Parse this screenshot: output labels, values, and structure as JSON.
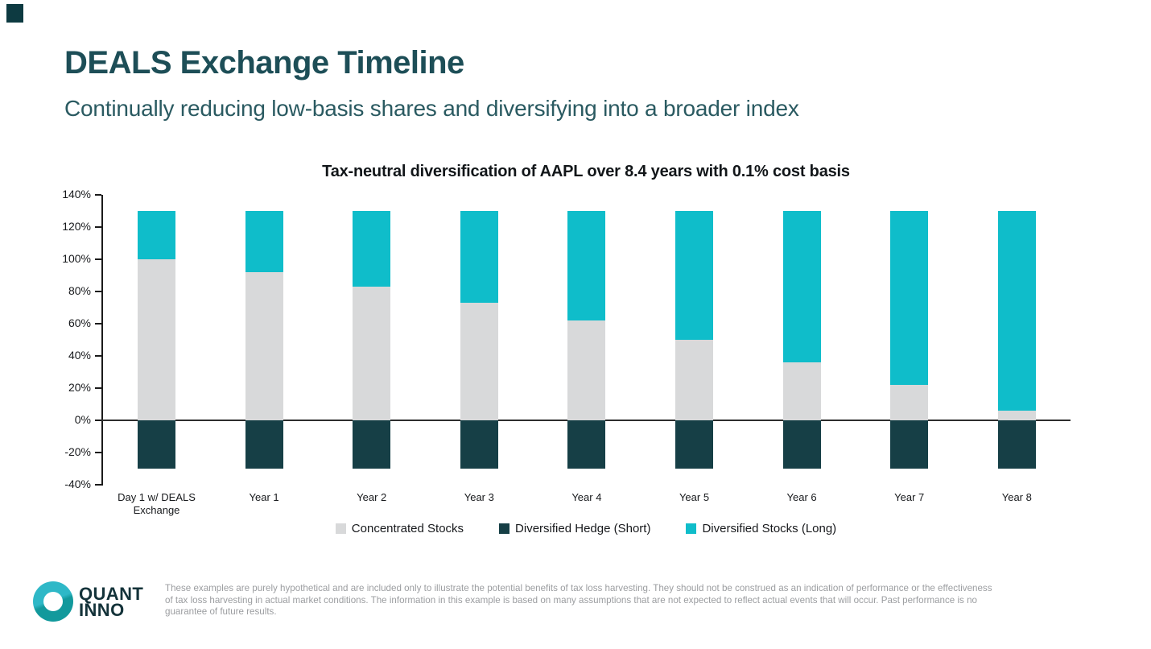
{
  "page": {
    "title": "DEALS Exchange Timeline",
    "subtitle": "Continually reducing low-basis shares and diversifying into a broader index"
  },
  "chart_data": {
    "type": "bar",
    "variant": "stacked",
    "title": "Tax-neutral diversification of AAPL over 8.4 years with 0.1% cost basis",
    "categories": [
      "Day 1 w/ DEALS\nExchange",
      "Year 1",
      "Year 2",
      "Year 3",
      "Year 4",
      "Year 5",
      "Year 6",
      "Year 7",
      "Year 8"
    ],
    "series": [
      {
        "name": "Concentrated Stocks",
        "color": "#d8d9da",
        "values": [
          100,
          92,
          83,
          73,
          62,
          50,
          36,
          22,
          6
        ]
      },
      {
        "name": "Diversified Hedge (Short)",
        "color": "#163f46",
        "values": [
          -30,
          -30,
          -30,
          -30,
          -30,
          -30,
          -30,
          -30,
          -30
        ]
      },
      {
        "name": "Diversified Stocks (Long)",
        "color": "#0fbdca",
        "values": [
          30,
          38,
          47,
          57,
          68,
          80,
          94,
          108,
          124
        ]
      }
    ],
    "stack_totals_positive": [
      130,
      130,
      130,
      130,
      130,
      130,
      130,
      130,
      130
    ],
    "y_ticks": [
      140,
      120,
      100,
      80,
      60,
      40,
      20,
      0,
      -20,
      -40
    ],
    "y_tick_labels": [
      "140%",
      "120%",
      "100%",
      "80%",
      "60%",
      "40%",
      "20%",
      "0%",
      "-20%",
      "-40%"
    ],
    "ylim": [
      -40,
      140
    ],
    "xlabel": "",
    "ylabel": "",
    "grid": false,
    "legend_position": "bottom"
  },
  "footer": {
    "logo": {
      "line1": "QUANT",
      "line2": "INNO"
    },
    "disclaimer": "These examples are purely hypothetical and are included only to illustrate the potential benefits of tax loss harvesting. They should not be construed as an indication of performance or the effectiveness of tax loss harvesting in actual market conditions. The information in this example is based on many assumptions that are not expected to reflect actual events that will occur. Past performance is no guarantee of future results."
  },
  "colors": {
    "title_teal": "#1d4e57",
    "subtitle_teal": "#2a5a61",
    "bar_gray": "#d8d9da",
    "bar_dark_teal": "#163f46",
    "bar_cyan": "#0fbdca"
  }
}
